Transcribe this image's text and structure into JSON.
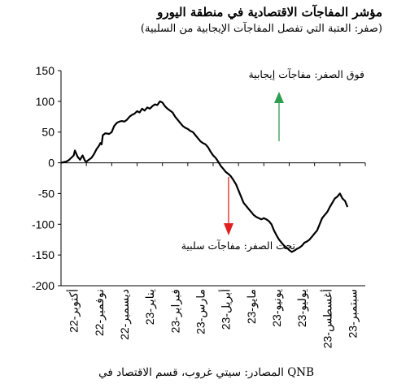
{
  "chart_data": {
    "type": "line",
    "title": "مؤشر المفاجآت الاقتصادية في منطقة اليورو",
    "subtitle": "(صفر: العتبة التي تفصل المفاجآت الإيجابية من السلبية)",
    "source": "المصادر: سيتي غروب، قسم الاقتصاد في QNB",
    "xlabel": "",
    "ylabel": "",
    "ylim": [
      -200,
      150
    ],
    "yticks": [
      "150",
      "100",
      "50",
      "0",
      "-50",
      "-100",
      "-150",
      "-200"
    ],
    "yticks_values": [
      150,
      100,
      50,
      0,
      -50,
      -100,
      -150,
      -200
    ],
    "categories": [
      "أكتوبر-22",
      "نوفمبر-22",
      "ديسمبر-22",
      "يناير-23",
      "فبراير-23",
      "مارس-23",
      "أبريل-23",
      "مايو-23",
      "يونيو-23",
      "يوليو-23",
      "أغسطس-23",
      "سبتمبر-23"
    ],
    "annotations": {
      "positive": "فوق الصفر: مفاجآت إيجابية",
      "negative": "تحت الصفر: مفاجآت سلبية"
    },
    "colors": {
      "line": "#000000",
      "up_arrow": "#2e9e4f",
      "down_arrow": "#e02020"
    },
    "grid": false,
    "series": [
      {
        "x": [
          0,
          0.1,
          0.2,
          0.3,
          0.4,
          0.5,
          0.55,
          0.65,
          0.75,
          0.85,
          0.95,
          1.0,
          1.1,
          1.2,
          1.3,
          1.4,
          1.5,
          1.55,
          1.6,
          1.65,
          1.75,
          1.9,
          2.0,
          2.1,
          2.2,
          2.3,
          2.4,
          2.5,
          2.6,
          2.7,
          2.8,
          2.9,
          3.0,
          3.1,
          3.2,
          3.3,
          3.4,
          3.5,
          3.6,
          3.7,
          3.8,
          3.9,
          4.0,
          4.1,
          4.2,
          4.3,
          4.4,
          4.5,
          4.6,
          4.7,
          4.8,
          4.9,
          5.0,
          5.1,
          5.2,
          5.3,
          5.4,
          5.5,
          5.6,
          5.7,
          5.8,
          5.9,
          6.0,
          6.1,
          6.2,
          6.3,
          6.4,
          6.5,
          6.6,
          6.7,
          6.8,
          6.9,
          7.0,
          7.1,
          7.2,
          7.3,
          7.4,
          7.5,
          7.6,
          7.7,
          7.8,
          7.9,
          8.0,
          8.1,
          8.2,
          8.3,
          8.4,
          8.5,
          8.6,
          8.7,
          8.8,
          8.9,
          9.0,
          9.1,
          9.2,
          9.3,
          9.4,
          9.5,
          9.6,
          9.7,
          9.8,
          9.9,
          10.0,
          10.1,
          10.2,
          10.3,
          10.4,
          10.5,
          10.6,
          10.7,
          10.8,
          10.9,
          11.0,
          11.1,
          11.2,
          11.3
        ],
        "values": [
          0,
          1,
          2,
          4,
          8,
          12,
          20,
          10,
          5,
          12,
          3,
          2,
          5,
          8,
          14,
          22,
          28,
          32,
          30,
          45,
          48,
          47,
          50,
          60,
          65,
          67,
          68,
          67,
          70,
          75,
          78,
          80,
          84,
          82,
          88,
          85,
          90,
          88,
          92,
          95,
          94,
          100,
          98,
          92,
          88,
          85,
          82,
          75,
          70,
          65,
          60,
          57,
          55,
          52,
          50,
          45,
          40,
          35,
          32,
          30,
          25,
          18,
          12,
          8,
          2,
          -5,
          -10,
          -15,
          -18,
          -22,
          -28,
          -35,
          -45,
          -55,
          -65,
          -70,
          -75,
          -80,
          -85,
          -88,
          -90,
          -92,
          -90,
          -92,
          -95,
          -100,
          -110,
          -118,
          -125,
          -130,
          -135,
          -138,
          -142,
          -145,
          -143,
          -140,
          -138,
          -135,
          -130,
          -128,
          -125,
          -120,
          -115,
          -110,
          -100,
          -90,
          -85,
          -80,
          -72,
          -65,
          -58,
          -55,
          -50,
          -58,
          -62,
          -72
        ]
      }
    ]
  }
}
